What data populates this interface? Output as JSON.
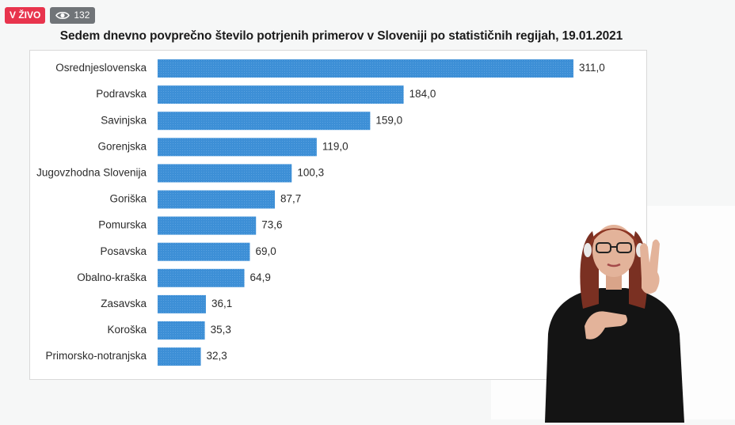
{
  "overlay": {
    "live_label": "V ŽIVO",
    "view_count": "132",
    "views_icon": "eye-icon"
  },
  "colors": {
    "bar": "#3d8fd6",
    "live_badge": "#e8344d"
  },
  "chart_data": {
    "type": "bar",
    "orientation": "horizontal",
    "title": "Sedem dnevno povprečno število potrjenih primerov v Sloveniji po statističnih regijah, 19.01.2021",
    "categories": [
      "Osrednjeslovenska",
      "Podravska",
      "Savinjska",
      "Gorenjska",
      "Jugovzhodna Slovenija",
      "Goriška",
      "Pomurska",
      "Posavska",
      "Obalno-kraška",
      "Zasavska",
      "Koroška",
      "Primorsko-notranjska"
    ],
    "values": [
      311.0,
      184.0,
      159.0,
      119.0,
      100.3,
      87.7,
      73.6,
      69.0,
      64.9,
      36.1,
      35.3,
      32.3
    ],
    "value_labels": [
      "311,0",
      "184,0",
      "159,0",
      "119,0",
      "100,3",
      "87,7",
      "73,6",
      "69,0",
      "64,9",
      "36,1",
      "35,3",
      "32,3"
    ],
    "xlabel": "",
    "ylabel": "",
    "xlim": [
      0,
      311
    ],
    "grid": false,
    "legend": "none"
  }
}
